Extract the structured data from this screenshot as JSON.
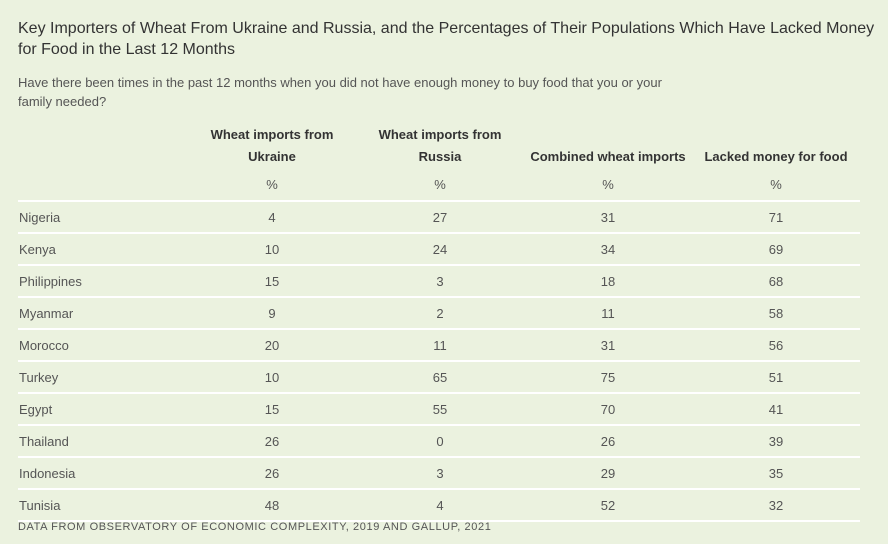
{
  "title": "Key Importers of Wheat From Ukraine and Russia, and the Percentages of Their Populations Which Have Lacked Money for Food in the Last 12 Months",
  "subtitle": "Have there been times in the past 12 months when you did not have enough money to buy food that you or your family needed?",
  "table": {
    "columns": [
      "Wheat imports from Ukraine",
      "Wheat imports from Russia",
      "Combined wheat imports",
      "Lacked money for food"
    ],
    "unit": "%",
    "rows": [
      {
        "country": "Nigeria",
        "values": [
          "4",
          "27",
          "31",
          "71"
        ]
      },
      {
        "country": "Kenya",
        "values": [
          "10",
          "24",
          "34",
          "69"
        ]
      },
      {
        "country": "Philippines",
        "values": [
          "15",
          "3",
          "18",
          "68"
        ]
      },
      {
        "country": "Myanmar",
        "values": [
          "9",
          "2",
          "11",
          "58"
        ]
      },
      {
        "country": "Morocco",
        "values": [
          "20",
          "11",
          "31",
          "56"
        ]
      },
      {
        "country": "Turkey",
        "values": [
          "10",
          "65",
          "75",
          "51"
        ]
      },
      {
        "country": "Egypt",
        "values": [
          "15",
          "55",
          "70",
          "41"
        ]
      },
      {
        "country": "Thailand",
        "values": [
          "26",
          "0",
          "26",
          "39"
        ]
      },
      {
        "country": "Indonesia",
        "values": [
          "26",
          "3",
          "29",
          "35"
        ]
      },
      {
        "country": "Tunisia",
        "values": [
          "48",
          "4",
          "52",
          "32"
        ]
      }
    ]
  },
  "source": "DATA FROM OBSERVATORY OF ECONOMIC COMPLEXITY, 2019 AND GALLUP, 2021"
}
